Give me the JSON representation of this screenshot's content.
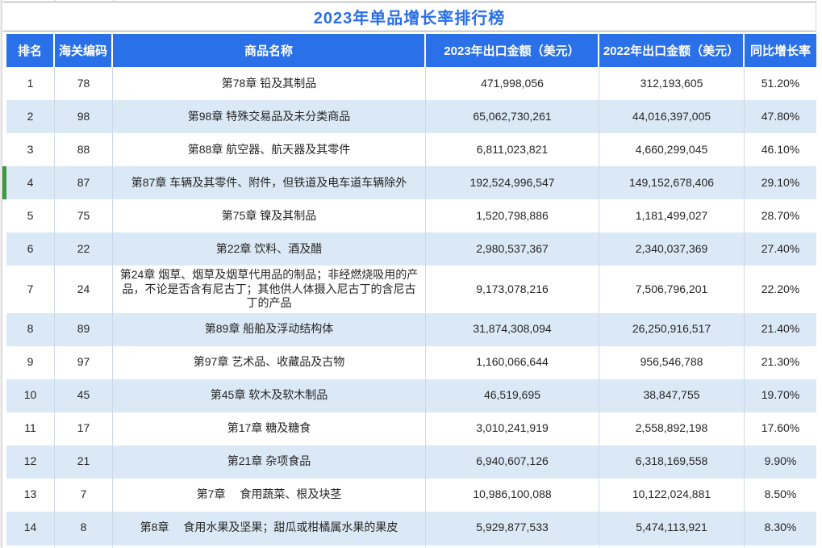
{
  "title": "2023年单品增长率排行榜",
  "table": {
    "columns": [
      "排名",
      "海关编码",
      "商品名称",
      "2023年出口金额（美元）",
      "2022年出口金额（美元）",
      "同比增长率"
    ],
    "rows": [
      {
        "rank": "1",
        "hs_code": "78",
        "name": "第78章  铅及其制品",
        "amount_2023": "471,998,056",
        "amount_2022": "312,193,605",
        "growth": "51.20%",
        "highlighted": false
      },
      {
        "rank": "2",
        "hs_code": "98",
        "name": "第98章  特殊交易品及未分类商品",
        "amount_2023": "65,062,730,261",
        "amount_2022": "44,016,397,005",
        "growth": "47.80%",
        "highlighted": false
      },
      {
        "rank": "3",
        "hs_code": "88",
        "name": "第88章  航空器、航天器及其零件",
        "amount_2023": "6,811,023,821",
        "amount_2022": "4,660,299,045",
        "growth": "46.10%",
        "highlighted": false
      },
      {
        "rank": "4",
        "hs_code": "87",
        "name": "第87章  车辆及其零件、附件，但铁道及电车道车辆除外",
        "amount_2023": "192,524,996,547",
        "amount_2022": "149,152,678,406",
        "growth": "29.10%",
        "highlighted": true
      },
      {
        "rank": "5",
        "hs_code": "75",
        "name": "第75章  镍及其制品",
        "amount_2023": "1,520,798,886",
        "amount_2022": "1,181,499,027",
        "growth": "28.70%",
        "highlighted": false
      },
      {
        "rank": "6",
        "hs_code": "22",
        "name": "第22章  饮料、酒及醋",
        "amount_2023": "2,980,537,367",
        "amount_2022": "2,340,037,369",
        "growth": "27.40%",
        "highlighted": false
      },
      {
        "rank": "7",
        "hs_code": "24",
        "name": "第24章  烟草、烟草及烟草代用品的制品；非经燃烧吸用的产品，不论是否含有尼古丁；其他供人体摄入尼古丁的含尼古丁的产品",
        "amount_2023": "9,173,078,216",
        "amount_2022": "7,506,796,201",
        "growth": "22.20%",
        "highlighted": false
      },
      {
        "rank": "8",
        "hs_code": "89",
        "name": "第89章  船舶及浮动结构体",
        "amount_2023": "31,874,308,094",
        "amount_2022": "26,250,916,517",
        "growth": "21.40%",
        "highlighted": false
      },
      {
        "rank": "9",
        "hs_code": "97",
        "name": "第97章  艺术品、收藏品及古物",
        "amount_2023": "1,160,066,644",
        "amount_2022": "956,546,788",
        "growth": "21.30%",
        "highlighted": false
      },
      {
        "rank": "10",
        "hs_code": "45",
        "name": "第45章  软木及软木制品",
        "amount_2023": "46,519,695",
        "amount_2022": "38,847,755",
        "growth": "19.70%",
        "highlighted": false
      },
      {
        "rank": "11",
        "hs_code": "17",
        "name": "第17章  糖及糖食",
        "amount_2023": "3,010,241,919",
        "amount_2022": "2,558,892,198",
        "growth": "17.60%",
        "highlighted": false
      },
      {
        "rank": "12",
        "hs_code": "21",
        "name": "第21章  杂项食品",
        "amount_2023": "6,940,607,126",
        "amount_2022": "6,318,169,558",
        "growth": "9.90%",
        "highlighted": false
      },
      {
        "rank": "13",
        "hs_code": "7",
        "name": "第7章　 食用蔬菜、根及块茎",
        "amount_2023": "10,986,100,088",
        "amount_2022": "10,122,024,881",
        "growth": "8.50%",
        "highlighted": false
      },
      {
        "rank": "14",
        "hs_code": "8",
        "name": "第8章　 食用水果及坚果；甜瓜或柑橘属水果的果皮",
        "amount_2023": "5,929,877,533",
        "amount_2022": "5,474,113,921",
        "growth": "8.30%",
        "highlighted": false
      }
    ]
  },
  "colors": {
    "header_bg": "#2a70e8",
    "title_text": "#2a6fe8",
    "alt_row_bg": "#dbe9f6",
    "grid_line": "#ccd9e8",
    "highlight_marker": "#3a9a40"
  },
  "chart_data": {
    "type": "table",
    "title": "2023年单品增长率排行榜",
    "columns": [
      "排名",
      "海关编码",
      "商品名称",
      "2023年出口金额（美元）",
      "2022年出口金额（美元）",
      "同比增长率"
    ],
    "rows": [
      [
        1,
        78,
        "第78章 铅及其制品",
        471998056,
        312193605,
        "51.20%"
      ],
      [
        2,
        98,
        "第98章 特殊交易品及未分类商品",
        65062730261,
        44016397005,
        "47.80%"
      ],
      [
        3,
        88,
        "第88章 航空器、航天器及其零件",
        6811023821,
        4660299045,
        "46.10%"
      ],
      [
        4,
        87,
        "第87章 车辆及其零件、附件，但铁道及电车道车辆除外",
        192524996547,
        149152678406,
        "29.10%"
      ],
      [
        5,
        75,
        "第75章 镍及其制品",
        1520798886,
        1181499027,
        "28.70%"
      ],
      [
        6,
        22,
        "第22章 饮料、酒及醋",
        2980537367,
        2340037369,
        "27.40%"
      ],
      [
        7,
        24,
        "第24章 烟草、烟草及烟草代用品的制品；非经燃烧吸用的产品，不论是否含有尼古丁；其他供人体摄入尼古丁的含尼古丁的产品",
        9173078216,
        7506796201,
        "22.20%"
      ],
      [
        8,
        89,
        "第89章 船舶及浮动结构体",
        31874308094,
        26250916517,
        "21.40%"
      ],
      [
        9,
        97,
        "第97章 艺术品、收藏品及古物",
        1160066644,
        956546788,
        "21.30%"
      ],
      [
        10,
        45,
        "第45章 软木及软木制品",
        46519695,
        38847755,
        "19.70%"
      ],
      [
        11,
        17,
        "第17章 糖及糖食",
        3010241919,
        2558892198,
        "17.60%"
      ],
      [
        12,
        21,
        "第21章 杂项食品",
        6940607126,
        6318169558,
        "9.90%"
      ],
      [
        13,
        7,
        "第7章 食用蔬菜、根及块茎",
        10986100088,
        10122024881,
        "8.50%"
      ],
      [
        14,
        8,
        "第8章 食用水果及坚果；甜瓜或柑橘属水果的果皮",
        5929877533,
        5474113921,
        "8.30%"
      ]
    ]
  }
}
